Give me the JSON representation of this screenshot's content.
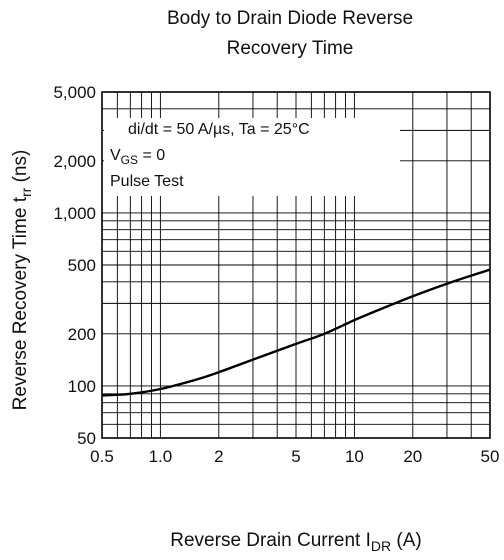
{
  "chart_data": {
    "type": "line",
    "title_lines": [
      "Body to Drain Diode Reverse",
      "Recovery Time"
    ],
    "xlabel": {
      "main": "Reverse Drain Current  I",
      "sub": "DR",
      "unit": "  (A)"
    },
    "ylabel": {
      "main": "Reverse Recovery Time  t",
      "sub": "rr",
      "unit": "  (ns)"
    },
    "x_scale": "log",
    "y_scale": "log",
    "xlim": [
      0.5,
      50
    ],
    "ylim": [
      50,
      5000
    ],
    "x_ticks": [
      {
        "value": 0.5,
        "label": "0.5"
      },
      {
        "value": 1,
        "label": "1.0"
      },
      {
        "value": 2,
        "label": "2"
      },
      {
        "value": 5,
        "label": "5"
      },
      {
        "value": 10,
        "label": "10"
      },
      {
        "value": 20,
        "label": "20"
      },
      {
        "value": 50,
        "label": "50"
      }
    ],
    "y_ticks": [
      {
        "value": 50,
        "label": "50"
      },
      {
        "value": 100,
        "label": "100"
      },
      {
        "value": 200,
        "label": "200"
      },
      {
        "value": 500,
        "label": "500"
      },
      {
        "value": 1000,
        "label": "1,000"
      },
      {
        "value": 2000,
        "label": "2,000"
      },
      {
        "value": 5000,
        "label": "5,000"
      }
    ],
    "grid": true,
    "annotations": [
      {
        "text": "di/dt = 50 A/µs, Ta = 25°C"
      },
      {
        "main": "V",
        "sub": "GS",
        "rest": " = 0"
      },
      {
        "text": "Pulse Test"
      }
    ],
    "series": [
      {
        "x": [
          0.5,
          0.7,
          1.0,
          1.5,
          2.0,
          3.0,
          5.0,
          7.0,
          10,
          15,
          20,
          30,
          50
        ],
        "y": [
          88,
          90,
          96,
          108,
          120,
          142,
          175,
          200,
          240,
          290,
          330,
          390,
          470
        ]
      }
    ]
  }
}
